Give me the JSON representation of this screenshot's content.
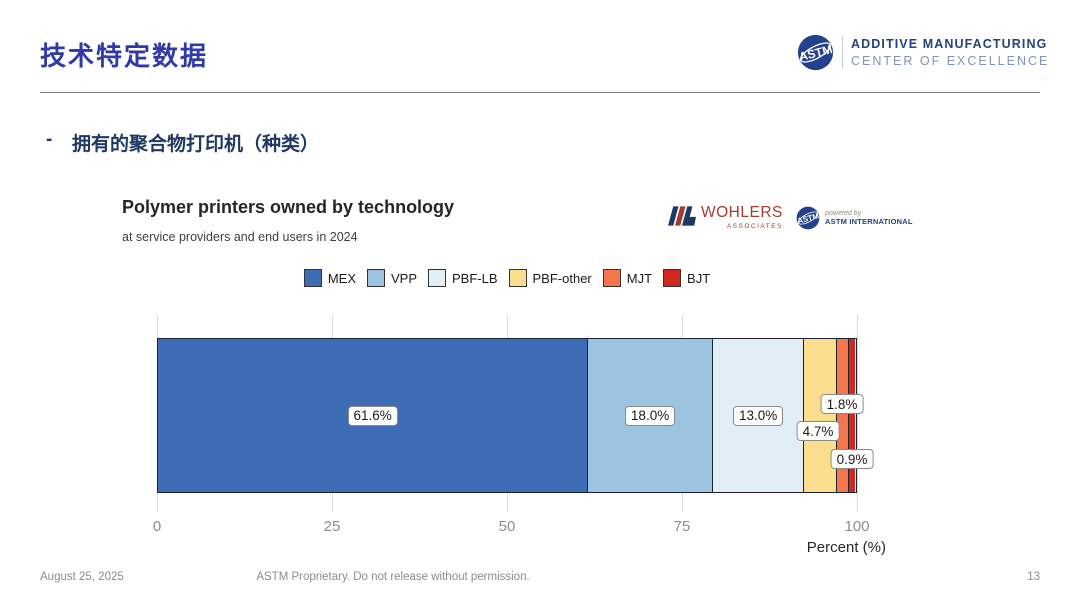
{
  "slide": {
    "title": "技术特定数据",
    "bullet_dash": "-",
    "bullet": "拥有的聚合物打印机（种类）",
    "footer": {
      "date": "August 25, 2025",
      "notice": "ASTM Proprietary. Do not release without permission.",
      "page": "13"
    }
  },
  "brand": {
    "astm_logo_text": "ASTM",
    "org_line1": "ADDITIVE MANUFACTURING",
    "org_line2": "CENTER OF EXCELLENCE",
    "wohlers_name": "WOHLERS",
    "wohlers_sub": "ASSOCIATES",
    "powered_by": "powered by",
    "powered_org": "ASTM INTERNATIONAL"
  },
  "chart_data": {
    "type": "bar",
    "orientation": "horizontal-stacked",
    "title": "Polymer printers owned by technology",
    "subtitle": "at service providers and end users in 2024",
    "xlabel": "Percent (%)",
    "xlim": [
      0,
      100
    ],
    "xticks": [
      0,
      25,
      50,
      75,
      100
    ],
    "categories": [
      "MEX",
      "VPP",
      "PBF-LB",
      "PBF-other",
      "MJT",
      "BJT"
    ],
    "values": [
      61.6,
      18.0,
      13.0,
      4.7,
      1.8,
      0.9
    ],
    "value_labels": [
      "61.6%",
      "18.0%",
      "13.0%",
      "4.7%",
      "1.8%",
      "0.9%"
    ],
    "colors": [
      "#3E6DB5",
      "#9CC3E0",
      "#E2EEF6",
      "#FBDE8D",
      "#F4764A",
      "#D2271F"
    ],
    "grid": true,
    "legend_position": "top"
  }
}
